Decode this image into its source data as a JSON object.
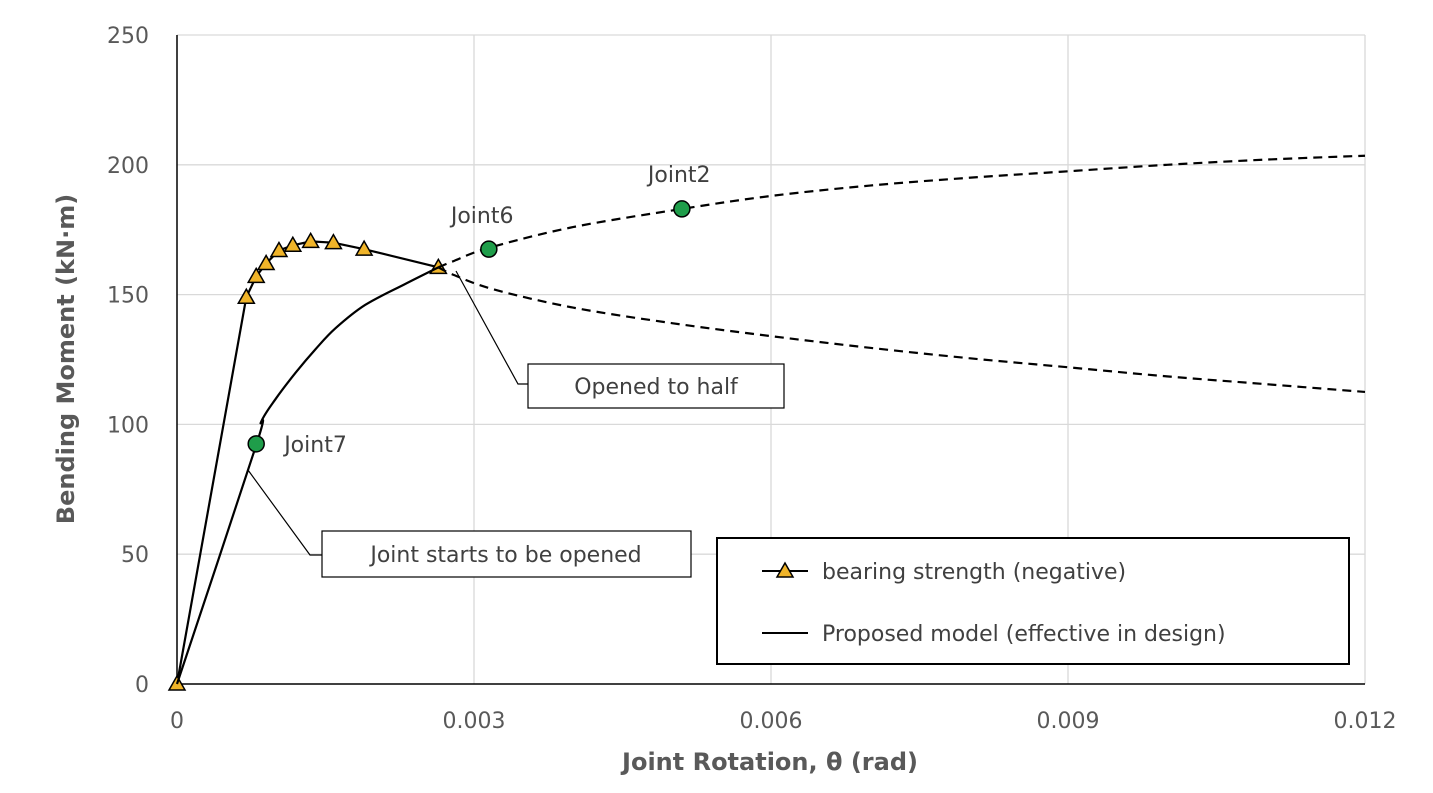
{
  "chart_data": {
    "type": "line",
    "xlabel": "Joint Rotation, θ (rad)",
    "ylabel": "Bending Moment (kN·m)",
    "xlim": [
      0,
      0.012
    ],
    "ylim": [
      0,
      250
    ],
    "xticks": [
      0,
      0.003,
      0.006,
      0.009,
      0.012
    ],
    "xtick_labels": [
      "0",
      "0.003",
      "0.006",
      "0.009",
      "0.012"
    ],
    "yticks": [
      0,
      50,
      100,
      150,
      200,
      250
    ],
    "ytick_labels": [
      "0",
      "50",
      "100",
      "150",
      "200",
      "250"
    ],
    "grid": true,
    "legend_position": "bottom-right",
    "series": [
      {
        "name": "bearing strength (negative)",
        "marker": "triangle",
        "marker_color": "#f0b429",
        "line_style": "solid",
        "x": [
          0,
          0.0007,
          0.0008,
          0.0009,
          0.00103,
          0.00117,
          0.00135,
          0.00158,
          0.00189,
          0.00264
        ],
        "y": [
          0,
          149,
          157,
          162,
          167,
          169,
          170.5,
          170,
          167.5,
          160.5
        ]
      },
      {
        "name": "Proposed model (effective in design)",
        "line_style": "solid",
        "x": [
          0,
          0.0008,
          0.00085,
          0.001,
          0.0012,
          0.0014,
          0.0016,
          0.0019,
          0.0023,
          0.00264
        ],
        "y": [
          0,
          92,
          101,
          110,
          120,
          129,
          137,
          146,
          154,
          160.5
        ]
      },
      {
        "name": "",
        "line_style": "dashed",
        "x": [
          0.00264,
          0.0028,
          0.00315,
          0.004,
          0.0051,
          0.006,
          0.007,
          0.008,
          0.009,
          0.01,
          0.011,
          0.012
        ],
        "y": [
          160.5,
          163,
          168,
          176,
          183,
          188,
          192,
          195,
          197.5,
          200,
          202,
          203.5
        ]
      },
      {
        "name": "",
        "line_style": "dashed",
        "x": [
          0.00264,
          0.0028,
          0.0032,
          0.004,
          0.005,
          0.006,
          0.007,
          0.008,
          0.009,
          0.01,
          0.011,
          0.012
        ],
        "y": [
          160.5,
          157.5,
          152,
          145,
          139,
          134,
          129.5,
          125.5,
          122,
          118.5,
          115.5,
          112.5
        ]
      }
    ],
    "points": [
      {
        "label": "Joint7",
        "x": 0.0008,
        "y": 92.5,
        "color": "#1f9d4a"
      },
      {
        "label": "Joint6",
        "x": 0.00315,
        "y": 167.5,
        "color": "#1f9d4a"
      },
      {
        "label": "Joint2",
        "x": 0.0051,
        "y": 183,
        "color": "#1f9d4a"
      }
    ],
    "annotations": [
      {
        "text": "Joint starts to be opened",
        "target_x": 0.0007,
        "target_y": 84
      },
      {
        "text": "Opened to half",
        "target_x": 0.0028,
        "target_y": 160
      }
    ]
  }
}
